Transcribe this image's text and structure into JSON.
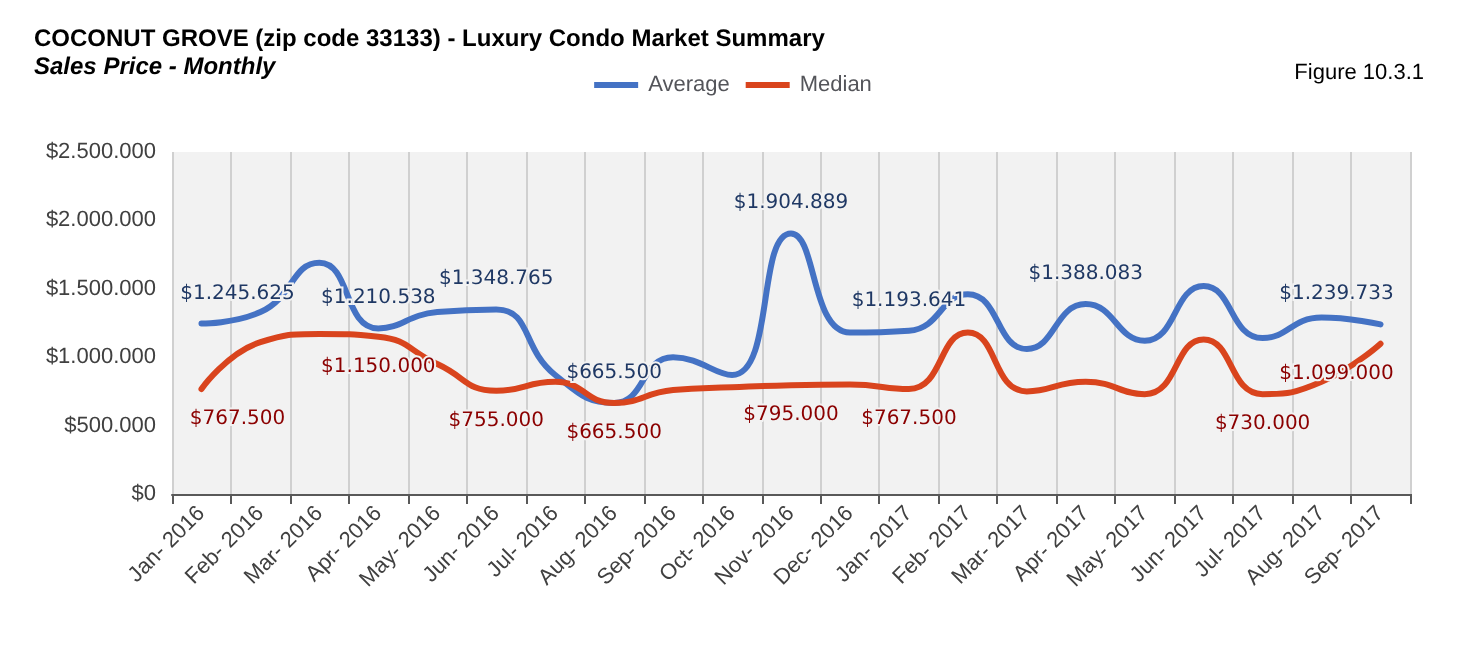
{
  "chart_data": {
    "type": "line",
    "title": "COCONUT GROVE (zip code 33133) - Luxury Condo Market Summary",
    "subtitle": "Sales Price - Monthly",
    "annotations": [
      "Figure 10.3.1"
    ],
    "categories": [
      "Jan- 2016",
      "Feb- 2016",
      "Mar- 2016",
      "Apr- 2016",
      "May- 2016",
      "Jun- 2016",
      "Jul- 2016",
      "Aug- 2016",
      "Sep- 2016",
      "Oct- 2016",
      "Nov- 2016",
      "Dec- 2016",
      "Jan- 2017",
      "Feb- 2017",
      "Mar- 2017",
      "Apr- 2017",
      "May- 2017",
      "Jun- 2017",
      "Jul- 2017",
      "Aug- 2017",
      "Sep- 2017"
    ],
    "series": [
      {
        "name": "Average",
        "color": "#4472c4",
        "values": [
          1245625,
          1330000,
          1690000,
          1210538,
          1330000,
          1348765,
          870000,
          665500,
          1000000,
          870000,
          1904889,
          1180000,
          1193641,
          1460000,
          1060000,
          1388083,
          1120000,
          1520000,
          1140000,
          1290000,
          1239733
        ],
        "value_labels": [
          "$1.245.625",
          null,
          null,
          "$1.210.538",
          null,
          "$1.348.765",
          null,
          "$665.500",
          null,
          null,
          "$1.904.889",
          null,
          "$1.193.641",
          null,
          null,
          "$1.388.083",
          null,
          null,
          null,
          null,
          "$1.239.733"
        ]
      },
      {
        "name": "Median",
        "color": "#d9441d",
        "values": [
          767500,
          1110000,
          1170000,
          1150000,
          950000,
          755000,
          820000,
          665500,
          760000,
          780000,
          795000,
          800000,
          767500,
          1180000,
          750000,
          820000,
          730000,
          1130000,
          730000,
          820000,
          1099000
        ],
        "value_labels": [
          "$767.500",
          null,
          null,
          "$1.150.000",
          null,
          "$755.000",
          null,
          "$665.500",
          null,
          null,
          "$795.000",
          null,
          "$767.500",
          null,
          null,
          null,
          null,
          null,
          "$730.000",
          null,
          "$1.099.000"
        ]
      }
    ],
    "ylim": [
      0,
      2500000
    ],
    "yticks": [
      {
        "value": 0,
        "label": "$0"
      },
      {
        "value": 500000,
        "label": "$500.000"
      },
      {
        "value": 1000000,
        "label": "$1.000.000"
      },
      {
        "value": 1500000,
        "label": "$1.500.000"
      },
      {
        "value": 2000000,
        "label": "$2.000.000"
      },
      {
        "value": 2500000,
        "label": "$2.500.000"
      }
    ],
    "grid": "x",
    "legend": "top",
    "marker": "none",
    "line_style": "solid"
  }
}
